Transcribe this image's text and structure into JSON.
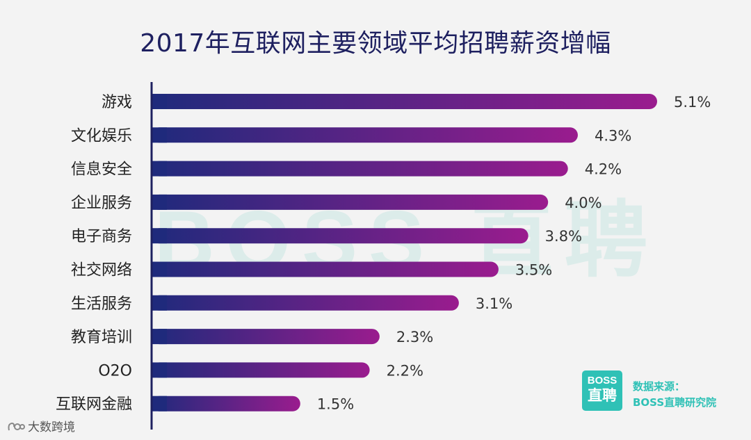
{
  "chart_data": {
    "type": "bar",
    "orientation": "horizontal",
    "title": "2017年互联网主要领域平均招聘薪资增幅",
    "categories": [
      "游戏",
      "文化娱乐",
      "信息安全",
      "企业服务",
      "电子商务",
      "社交网络",
      "生活服务",
      "教育培训",
      "O2O",
      "互联网金融"
    ],
    "values": [
      5.1,
      4.3,
      4.2,
      4.0,
      3.8,
      3.5,
      3.1,
      2.3,
      2.2,
      1.5
    ],
    "value_labels": [
      "5.1%",
      "4.3%",
      "4.2%",
      "4.0%",
      "3.8%",
      "3.5%",
      "3.1%",
      "2.3%",
      "2.2%",
      "1.5%"
    ],
    "xlim": [
      0,
      5.1
    ],
    "grid": false,
    "bar_gradient": [
      "#1f2a7c",
      "#9a1c8e"
    ]
  },
  "watermark": "BOSS 直聘",
  "logo": {
    "line1": "BOSS",
    "line2": "直聘"
  },
  "source": {
    "label": "数据来源：",
    "name": "BOSS直聘研究院"
  },
  "credit": "大数跨境",
  "colors": {
    "title": "#1e2060",
    "axis": "#1e2060",
    "category_text": "#222222",
    "value_text": "#333333",
    "accent_teal": "#2fc1b6",
    "background": "#f3f3f3"
  }
}
